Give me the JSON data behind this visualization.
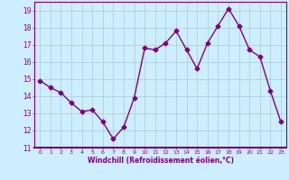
{
  "x": [
    0,
    1,
    2,
    3,
    4,
    5,
    6,
    7,
    8,
    9,
    10,
    11,
    12,
    13,
    14,
    15,
    16,
    17,
    18,
    19,
    20,
    21,
    22,
    23
  ],
  "y": [
    14.9,
    14.5,
    14.2,
    13.6,
    13.1,
    13.2,
    12.5,
    11.5,
    12.2,
    13.9,
    16.8,
    16.7,
    17.1,
    17.8,
    16.7,
    15.6,
    17.1,
    18.1,
    19.1,
    18.1,
    16.7,
    16.3,
    14.3,
    12.5
  ],
  "line_color": "#800080",
  "marker": "D",
  "marker_size": 2.5,
  "linewidth": 1.0,
  "xlabel": "Windchill (Refroidissement éolien,°C)",
  "xlim": [
    -0.5,
    23.5
  ],
  "ylim": [
    11,
    19.5
  ],
  "yticks": [
    11,
    12,
    13,
    14,
    15,
    16,
    17,
    18,
    19
  ],
  "xticks": [
    0,
    1,
    2,
    3,
    4,
    5,
    6,
    7,
    8,
    9,
    10,
    11,
    12,
    13,
    14,
    15,
    16,
    17,
    18,
    19,
    20,
    21,
    22,
    23
  ],
  "bg_color": "#cceeff",
  "grid_color": "#aacccc",
  "label_color": "#800080",
  "tick_color": "#800080"
}
